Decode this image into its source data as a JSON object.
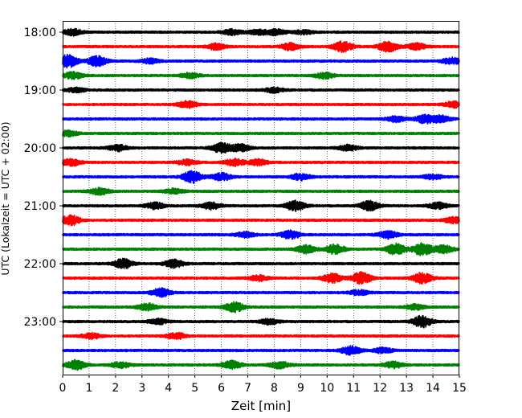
{
  "chart_data": {
    "type": "line",
    "xlabel": "Zeit  [min]",
    "ylabel": "UTC (Lokalzeit = UTC + 02:00)",
    "xlim": [
      0,
      15
    ],
    "x_ticks": [
      "0",
      "1",
      "2",
      "3",
      "4",
      "5",
      "6",
      "7",
      "8",
      "9",
      "10",
      "11",
      "12",
      "13",
      "14",
      "15"
    ],
    "y_ticks": [
      {
        "label": "18:00",
        "row": 0
      },
      {
        "label": "19:00",
        "row": 4
      },
      {
        "label": "20:00",
        "row": 8
      },
      {
        "label": "21:00",
        "row": 12
      },
      {
        "label": "22:00",
        "row": 16
      },
      {
        "label": "23:00",
        "row": 20
      }
    ],
    "grid": "vertical dotted",
    "trace_colors": [
      "#000000",
      "#ff0000",
      "#0000ff",
      "#008000"
    ],
    "traces": [
      {
        "start": "18:00",
        "color": "#000000",
        "bursts": [
          [
            0.4,
            1.2
          ],
          [
            6.4,
            1.0
          ],
          [
            7.4,
            0.9
          ],
          [
            8.1,
            1.1
          ],
          [
            9.1,
            0.8
          ]
        ]
      },
      {
        "start": "18:15",
        "color": "#ff0000",
        "bursts": [
          [
            5.8,
            1.1
          ],
          [
            8.6,
            1.3
          ],
          [
            10.6,
            2.0
          ],
          [
            12.3,
            1.9
          ],
          [
            13.4,
            1.2
          ]
        ]
      },
      {
        "start": "18:30",
        "color": "#0000ff",
        "bursts": [
          [
            0.2,
            2.4
          ],
          [
            1.3,
            1.9
          ],
          [
            3.3,
            0.9
          ],
          [
            14.7,
            1.2
          ]
        ]
      },
      {
        "start": "18:45",
        "color": "#008000",
        "bursts": [
          [
            0.4,
            1.3
          ],
          [
            4.8,
            1.0
          ],
          [
            9.9,
            1.1
          ]
        ]
      },
      {
        "start": "19:00",
        "color": "#000000",
        "bursts": [
          [
            0.5,
            0.8
          ],
          [
            8.0,
            0.9
          ]
        ]
      },
      {
        "start": "19:15",
        "color": "#ff0000",
        "bursts": [
          [
            4.7,
            1.3
          ],
          [
            14.8,
            1.1
          ]
        ]
      },
      {
        "start": "19:30",
        "color": "#0000ff",
        "bursts": [
          [
            12.6,
            1.0
          ],
          [
            13.7,
            1.5
          ],
          [
            14.3,
            1.2
          ]
        ]
      },
      {
        "start": "19:45",
        "color": "#008000",
        "bursts": [
          [
            0.2,
            1.1
          ]
        ]
      },
      {
        "start": "20:00",
        "color": "#000000",
        "bursts": [
          [
            2.1,
            1.2
          ],
          [
            6.0,
            1.8
          ],
          [
            6.7,
            1.4
          ],
          [
            10.8,
            1.1
          ]
        ]
      },
      {
        "start": "20:15",
        "color": "#ff0000",
        "bursts": [
          [
            0.3,
            1.3
          ],
          [
            4.7,
            1.0
          ],
          [
            6.5,
            1.3
          ],
          [
            7.4,
            1.1
          ]
        ]
      },
      {
        "start": "20:30",
        "color": "#0000ff",
        "bursts": [
          [
            4.9,
            2.3
          ],
          [
            6.0,
            1.4
          ],
          [
            9.0,
            1.2
          ],
          [
            14.0,
            0.9
          ]
        ]
      },
      {
        "start": "20:45",
        "color": "#008000",
        "bursts": [
          [
            1.4,
            1.3
          ],
          [
            4.2,
            1.0
          ]
        ]
      },
      {
        "start": "21:00",
        "color": "#000000",
        "bursts": [
          [
            3.5,
            1.2
          ],
          [
            5.6,
            1.3
          ],
          [
            8.8,
            1.9
          ],
          [
            11.6,
            1.8
          ],
          [
            14.2,
            1.2
          ]
        ]
      },
      {
        "start": "21:15",
        "color": "#ff0000",
        "bursts": [
          [
            0.3,
            1.9
          ],
          [
            14.8,
            1.1
          ]
        ]
      },
      {
        "start": "21:30",
        "color": "#0000ff",
        "bursts": [
          [
            6.9,
            1.0
          ],
          [
            8.6,
            1.6
          ],
          [
            12.3,
            1.4
          ]
        ]
      },
      {
        "start": "21:45",
        "color": "#008000",
        "bursts": [
          [
            9.2,
            1.5
          ],
          [
            10.3,
            1.8
          ],
          [
            12.6,
            2.1
          ],
          [
            13.6,
            2.4
          ],
          [
            14.4,
            1.4
          ]
        ]
      },
      {
        "start": "22:00",
        "color": "#000000",
        "bursts": [
          [
            2.3,
            1.8
          ],
          [
            4.2,
            1.5
          ]
        ]
      },
      {
        "start": "22:15",
        "color": "#ff0000",
        "bursts": [
          [
            7.4,
            1.0
          ],
          [
            10.2,
            1.7
          ],
          [
            11.3,
            2.3
          ],
          [
            13.6,
            2.1
          ]
        ]
      },
      {
        "start": "22:30",
        "color": "#0000ff",
        "bursts": [
          [
            3.7,
            1.6
          ],
          [
            11.2,
            0.9
          ]
        ]
      },
      {
        "start": "22:45",
        "color": "#008000",
        "bursts": [
          [
            3.2,
            1.3
          ],
          [
            6.5,
            1.8
          ],
          [
            13.3,
            1.0
          ]
        ]
      },
      {
        "start": "23:00",
        "color": "#000000",
        "bursts": [
          [
            3.6,
            1.0
          ],
          [
            7.8,
            1.0
          ],
          [
            13.6,
            2.2
          ]
        ]
      },
      {
        "start": "23:15",
        "color": "#ff0000",
        "bursts": [
          [
            1.1,
            1.0
          ],
          [
            4.3,
            1.2
          ]
        ]
      },
      {
        "start": "23:30",
        "color": "#0000ff",
        "bursts": [
          [
            10.9,
            1.6
          ],
          [
            12.1,
            1.0
          ]
        ]
      },
      {
        "start": "23:45",
        "color": "#008000",
        "bursts": [
          [
            0.5,
            1.8
          ],
          [
            2.2,
            1.1
          ],
          [
            6.4,
            1.5
          ],
          [
            8.2,
            1.3
          ],
          [
            12.5,
            1.2
          ]
        ]
      }
    ]
  }
}
